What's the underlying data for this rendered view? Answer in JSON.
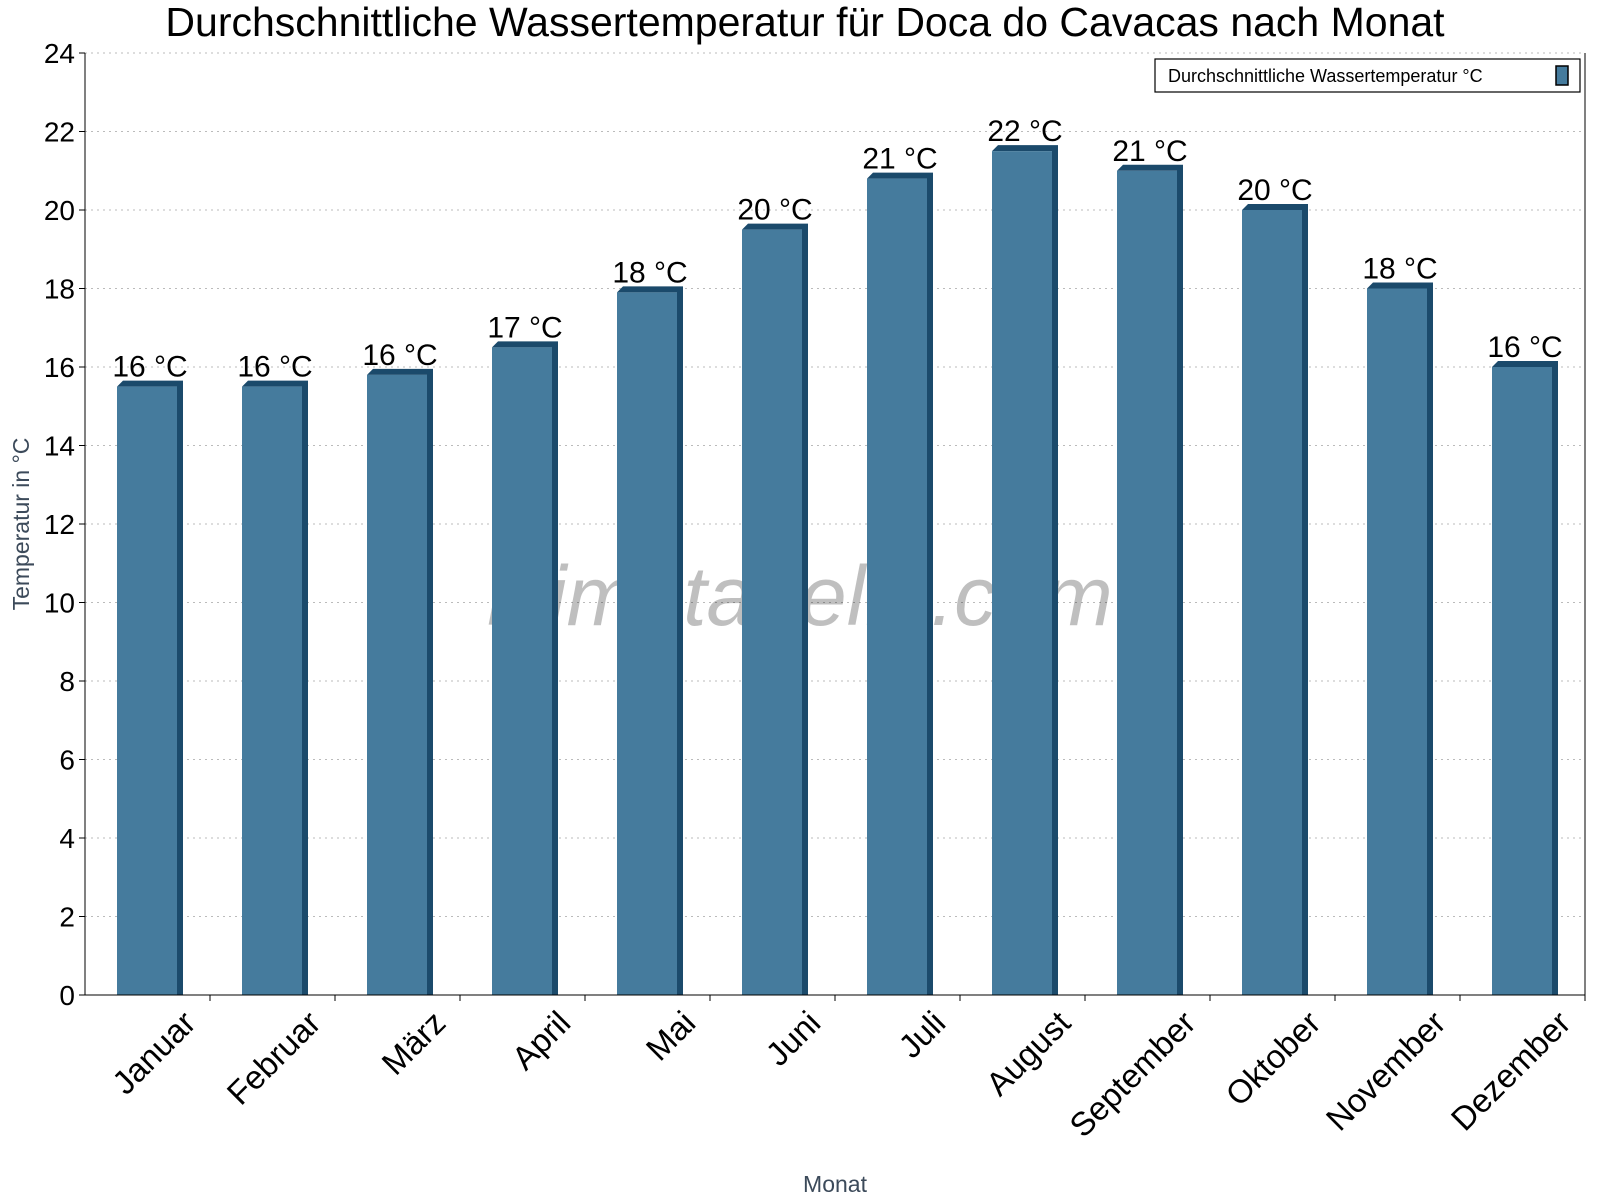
{
  "chart_data": {
    "type": "bar",
    "title": "Durchschnittliche Wassertemperatur für Doca do Cavacas nach Monat",
    "xlabel": "Monat",
    "ylabel": "Temperatur in °C",
    "ylim": [
      0,
      24
    ],
    "yticks": [
      0,
      2,
      4,
      6,
      8,
      10,
      12,
      14,
      16,
      18,
      20,
      22,
      24
    ],
    "grid": true,
    "legend_position": "top-right",
    "watermark": "klimatabelle.com",
    "categories": [
      "Januar",
      "Februar",
      "März",
      "April",
      "Mai",
      "Juni",
      "Juli",
      "August",
      "September",
      "Oktober",
      "November",
      "Dezember"
    ],
    "series": [
      {
        "name": "Durchschnittliche Wassertemperatur °C",
        "color": "#457b9d",
        "side_color": "#1b4a6b",
        "values": [
          15.5,
          15.5,
          15.8,
          16.5,
          17.9,
          19.5,
          20.8,
          21.5,
          21.0,
          20.0,
          18.0,
          16.0
        ],
        "data_labels": [
          "16 °C",
          "16 °C",
          "16 °C",
          "17 °C",
          "18 °C",
          "20 °C",
          "21 °C",
          "22 °C",
          "21 °C",
          "20 °C",
          "18 °C",
          "16 °C"
        ]
      }
    ]
  }
}
